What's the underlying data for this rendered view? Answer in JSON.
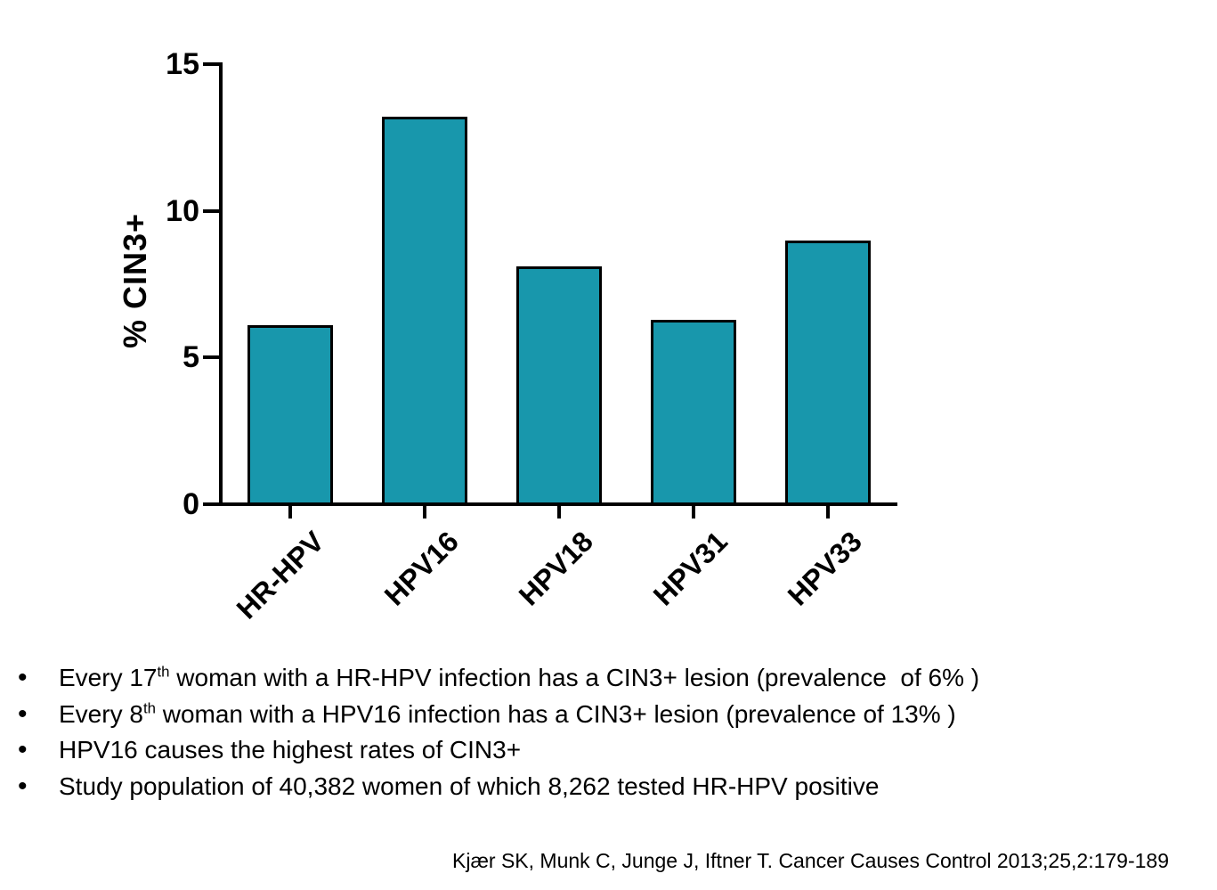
{
  "page": {
    "background": "#ffffff"
  },
  "chart_data": {
    "type": "bar",
    "categories": [
      "HR-HPV",
      "HPV16",
      "HPV18",
      "HPV31",
      "HPV33"
    ],
    "values": [
      6.1,
      13.2,
      8.1,
      6.3,
      9.0
    ],
    "title": "",
    "xlabel": "",
    "ylabel": "% CIN3+",
    "ylim": [
      0,
      15
    ],
    "yticks": [
      0,
      5,
      10,
      15
    ],
    "grid": false,
    "legend": "none",
    "bar_color": "#1897AC",
    "bar_border_color": "#000000",
    "axis_color": "#000000"
  },
  "bullets": [
    {
      "pre": "Every 17",
      "sup": "th",
      "post": " woman with a HR-HPV infection has a CIN3+ lesion (prevalence  of 6% )"
    },
    {
      "pre": "Every 8",
      "sup": "th",
      "post": " woman with a HPV16 infection has a CIN3+ lesion (prevalence of 13% )"
    },
    {
      "pre": "HPV16 causes the highest rates of CIN3+",
      "sup": "",
      "post": ""
    },
    {
      "pre": "Study population of 40,382 women of which 8,262 tested HR-HPV positive",
      "sup": "",
      "post": ""
    }
  ],
  "citation": "Kjær SK, Munk C, Junge J, Iftner T. Cancer Causes Control 2013;25,2:179-189"
}
